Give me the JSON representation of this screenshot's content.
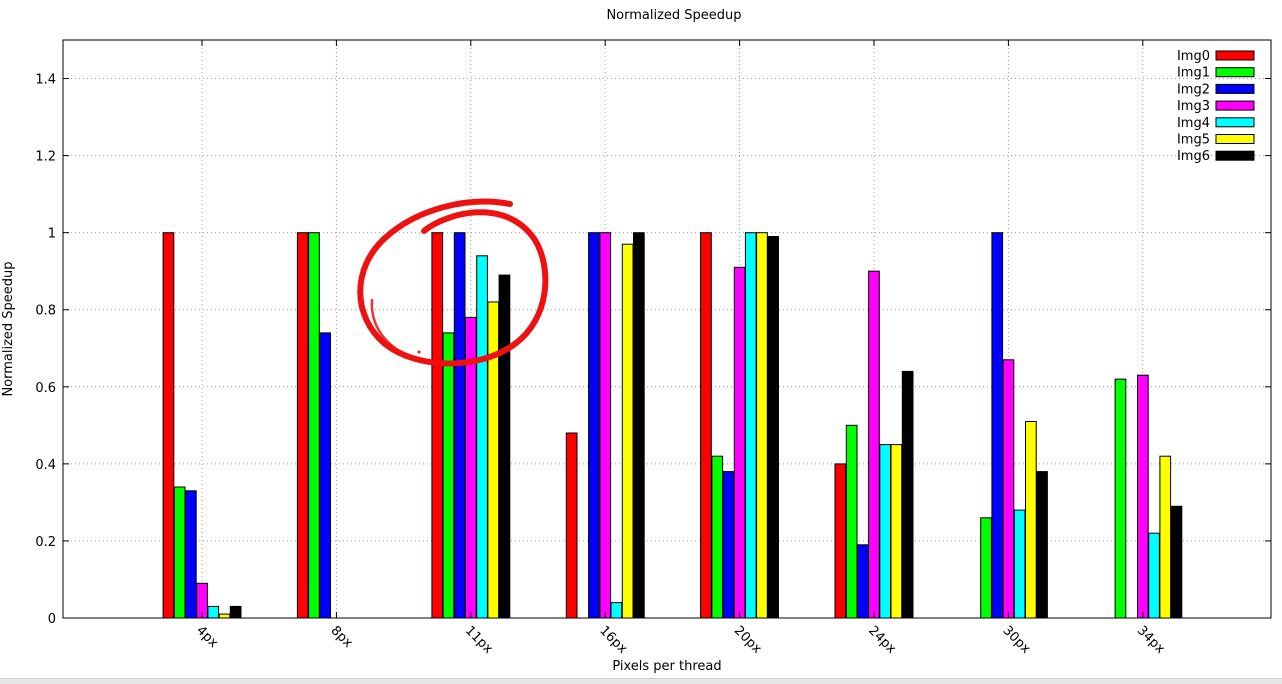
{
  "chart_data": {
    "type": "bar",
    "title": "Normalized Speedup",
    "xlabel": "Pixels per thread",
    "ylabel": "Normalized Speedup",
    "ylim": [
      0,
      1.5
    ],
    "yticks": [
      "0",
      "0.2",
      "0.4",
      "0.6",
      "0.8",
      "1",
      "1.2",
      "1.4"
    ],
    "ytick_values": [
      0,
      0.2,
      0.4,
      0.6,
      0.8,
      1.0,
      1.2,
      1.4
    ],
    "categories": [
      "4px",
      "8px",
      "11px",
      "16px",
      "20px",
      "24px",
      "30px",
      "34px"
    ],
    "grid": true,
    "legend_position": "top-right",
    "series": [
      {
        "name": "Img0",
        "color": "#ff0000",
        "values": [
          1.0,
          1.0,
          1.0,
          0.48,
          1.0,
          0.4,
          null,
          null
        ]
      },
      {
        "name": "Img1",
        "color": "#00ff00",
        "values": [
          0.34,
          1.0,
          0.74,
          null,
          0.42,
          0.5,
          0.26,
          0.62
        ]
      },
      {
        "name": "Img2",
        "color": "#0000ff",
        "values": [
          0.33,
          0.74,
          1.0,
          1.0,
          0.38,
          0.19,
          1.0,
          null
        ]
      },
      {
        "name": "Img3",
        "color": "#ff00ff",
        "values": [
          0.09,
          null,
          0.78,
          1.0,
          0.91,
          0.9,
          0.67,
          0.63
        ]
      },
      {
        "name": "Img4",
        "color": "#00ffff",
        "values": [
          0.03,
          null,
          0.94,
          0.04,
          1.0,
          0.45,
          0.28,
          0.22
        ]
      },
      {
        "name": "Img5",
        "color": "#ffff00",
        "values": [
          0.01,
          null,
          0.82,
          0.97,
          1.0,
          0.45,
          0.51,
          0.42
        ]
      },
      {
        "name": "Img6",
        "color": "#000000",
        "values": [
          0.03,
          null,
          0.89,
          1.0,
          0.99,
          0.64,
          0.38,
          0.29
        ]
      }
    ]
  },
  "annotation": {
    "shape": "hand-drawn circle",
    "color": "#ee1111",
    "highlights_category": "11px"
  }
}
